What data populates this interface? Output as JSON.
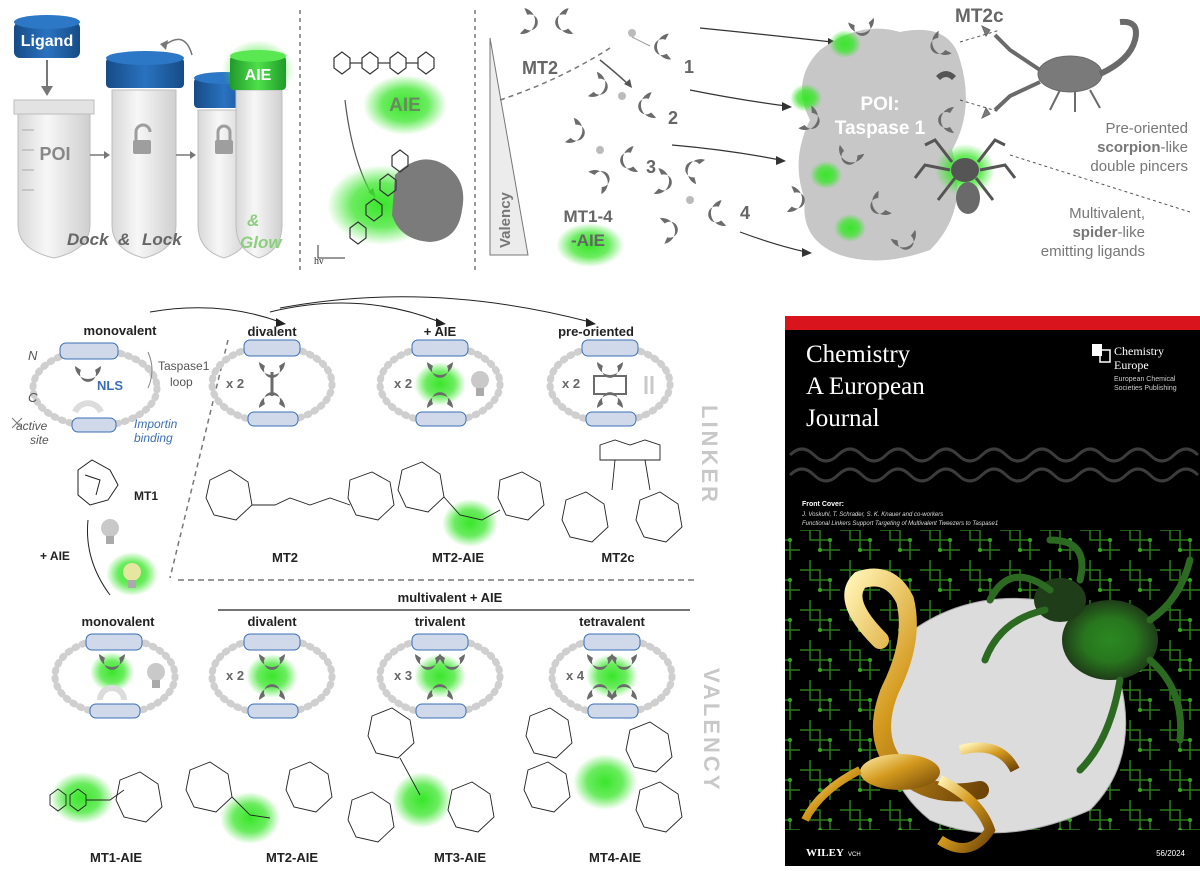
{
  "colors": {
    "aie_green": "#39e62a",
    "tube_blue": "#1f5fa3",
    "gray_protein": "#c7c7c7",
    "pincer_gray": "#6b6b6b",
    "cover_bg": "#000000",
    "cover_red": "#d9141c",
    "nls_blue": "#3b6fb5"
  },
  "tubes_panel": {
    "ligand_label": "Ligand",
    "poi_label": "POI",
    "aie_label": "AIE",
    "dock": "Dock",
    "amp1": "&",
    "lock": "Lock",
    "amp2": "&",
    "glow": "Glow"
  },
  "aie_panel": {
    "aie_label": "AIE",
    "hv_label": "hν"
  },
  "valency_panel": {
    "valency_label": "Valency",
    "mt2_label": "MT2",
    "mt14_line1": "MT1-4",
    "mt14_line2": "-AIE",
    "num1": "1",
    "num2": "2",
    "num3": "3",
    "num4": "4",
    "poi_line1": "POI:",
    "poi_line2": "Taspase 1",
    "mt2c_label": "MT2c",
    "scorpion_line1": "Pre-oriented",
    "scorpion_bold": "scorpion",
    "scorpion_rest": "-like",
    "scorpion_line3": "double pincers",
    "spider_line1": "Multivalent,",
    "spider_bold": "spider",
    "spider_rest": "-like",
    "spider_line3": "emitting ligands"
  },
  "linker_section": {
    "side_label": "LINKER",
    "monovalent": "monovalent",
    "n_label": "N",
    "c_label": "C",
    "taspase_line1": "Taspase1",
    "taspase_line2": "loop",
    "nls": "NLS",
    "active_line1": "active",
    "active_line2": "site",
    "importin_line1": "Importin",
    "importin_line2": "binding",
    "mt1": "MT1",
    "plus_aie": "+ AIE",
    "divalent": "divalent",
    "plus_aie_top": "+ AIE",
    "pre_oriented": "pre-oriented",
    "x2a": "x 2",
    "x2b": "x 2",
    "x2c": "x 2",
    "mt2": "MT2",
    "mt2_aie": "MT2-AIE",
    "mt2c": "MT2c"
  },
  "valency_section": {
    "side_label": "VALENCY",
    "header": "multivalent + AIE",
    "monovalent": "monovalent",
    "divalent": "divalent",
    "trivalent": "trivalent",
    "tetravalent": "tetravalent",
    "x2": "x 2",
    "x3": "x 3",
    "x4": "x 4",
    "mt1_aie": "MT1-AIE",
    "mt2_aie": "MT2-AIE",
    "mt3_aie": "MT3-AIE",
    "mt4_aie": "MT4-AIE"
  },
  "journal_cover": {
    "title_line1": "Chemistry",
    "title_line2": "A European",
    "title_line3": "Journal",
    "brand_line1": "Chemistry",
    "brand_line2": "Europe",
    "brand_sub1": "European Chemical",
    "brand_sub2": "Societies Publishing",
    "front_cover": "Front Cover:",
    "authors": "J. Voskuhl, T. Schrader, S. K. Knauer and co-workers",
    "article": "Functional Linkers Support Targeting of Multivalent Tweezers to Taspase1",
    "publisher": "WILEY",
    "publisher_sub": "VCH",
    "issue": "56/2024"
  }
}
